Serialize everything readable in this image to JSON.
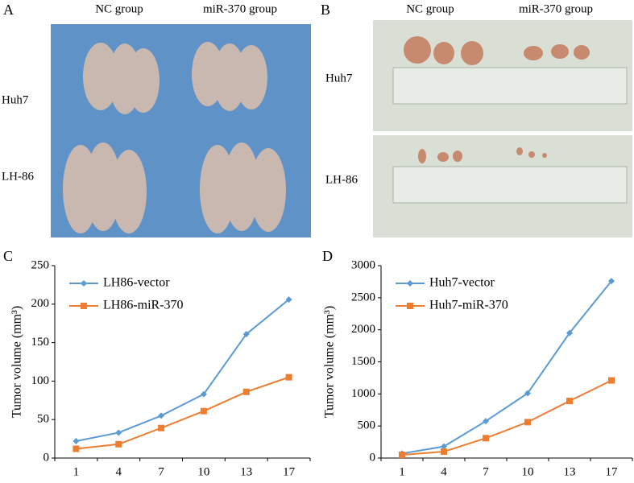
{
  "panels": [
    {
      "label": "A",
      "columns": [
        "NC group",
        "miR-370 group"
      ],
      "rows": [
        "Huh7",
        "LH-86"
      ]
    },
    {
      "label": "B",
      "columns": [
        "NC group",
        "miR-370 group"
      ],
      "rows": [
        "Huh7",
        "LH-86"
      ]
    }
  ],
  "chart_data": [
    {
      "type": "line",
      "panel_label": "C",
      "y_label": "Tumor volume (mm³)",
      "categories": [
        "1",
        "4",
        "7",
        "10",
        "13",
        "17"
      ],
      "ylim": [
        0,
        250
      ],
      "yticks": [
        0,
        50,
        100,
        150,
        200,
        250
      ],
      "grid": false,
      "legend": "top-left",
      "series": [
        {
          "name": "LH86-vector",
          "color": "#5b9bd5",
          "marker": "diamond",
          "values": [
            22,
            33,
            55,
            83,
            161,
            206
          ]
        },
        {
          "name": "LH86-miR-370",
          "color": "#ed7d31",
          "marker": "square",
          "values": [
            12,
            18,
            39,
            61,
            86,
            105
          ]
        }
      ]
    },
    {
      "type": "line",
      "panel_label": "D",
      "y_label": "Tumor volume (mm³)",
      "categories": [
        "1",
        "4",
        "7",
        "10",
        "13",
        "17"
      ],
      "ylim": [
        0,
        3000
      ],
      "yticks": [
        0,
        500,
        1000,
        1500,
        2000,
        2500,
        3000
      ],
      "grid": false,
      "legend": "top-left",
      "series": [
        {
          "name": "Huh7-vector",
          "color": "#5b9bd5",
          "marker": "diamond",
          "values": [
            70,
            180,
            575,
            1010,
            1950,
            2760
          ]
        },
        {
          "name": "Huh7-miR-370",
          "color": "#ed7d31",
          "marker": "square",
          "values": [
            50,
            100,
            310,
            560,
            890,
            1210
          ]
        }
      ]
    }
  ]
}
